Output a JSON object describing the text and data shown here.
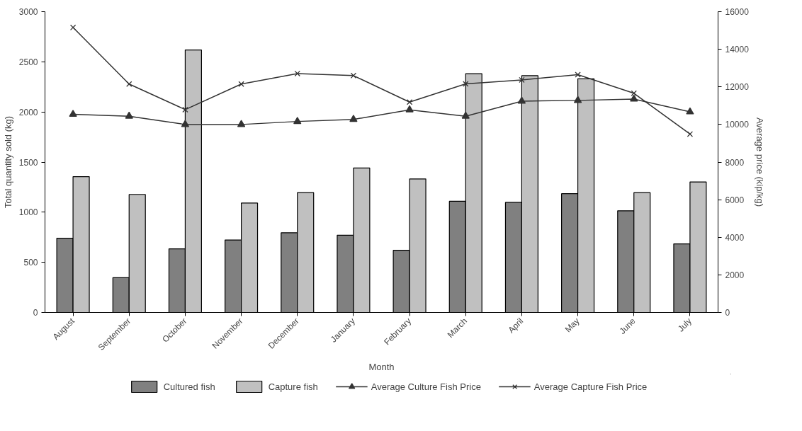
{
  "chart_data": {
    "type": "bar",
    "xlabel": "Month",
    "ylabel": "Total quantity sold (kg)",
    "y2label": "Average price (kip/kg)",
    "categories": [
      "August",
      "September",
      "October",
      "November",
      "December",
      "January",
      "February",
      "March",
      "April",
      "May",
      "June",
      "July"
    ],
    "series": [
      {
        "name": "Cultured fish",
        "color": "#808080",
        "values": [
          741,
          347,
          635,
          723,
          795,
          771,
          620,
          1109,
          1098,
          1185,
          1014,
          684
        ]
      },
      {
        "name": "Capture fish",
        "color": "#c0c0c0",
        "values": [
          1355,
          1177,
          2618,
          1091,
          1195,
          1441,
          1332,
          2382,
          2362,
          2331,
          1195,
          1302
        ]
      },
      {
        "name": "Average Culture Fish Price",
        "type": "line",
        "axis": "y2",
        "marker": "triangle",
        "color": "#333333",
        "values": [
          10540,
          10440,
          10000,
          10000,
          10160,
          10270,
          10780,
          10440,
          11240,
          11280,
          11350,
          10670
        ]
      },
      {
        "name": "Average Capture Fish Price",
        "type": "line",
        "axis": "y2",
        "marker": "cross",
        "color": "#333333",
        "values": [
          15160,
          12150,
          10790,
          12150,
          12710,
          12600,
          11190,
          12160,
          12370,
          12650,
          11660,
          9490
        ]
      }
    ],
    "ylim": [
      0,
      3000
    ],
    "yticks": [
      0,
      500,
      1000,
      1500,
      2000,
      2500,
      3000
    ],
    "y2lim": [
      0,
      16000
    ],
    "y2ticks": [
      0,
      2000,
      4000,
      6000,
      8000,
      10000,
      12000,
      14000,
      16000
    ],
    "legend": "bottom"
  }
}
